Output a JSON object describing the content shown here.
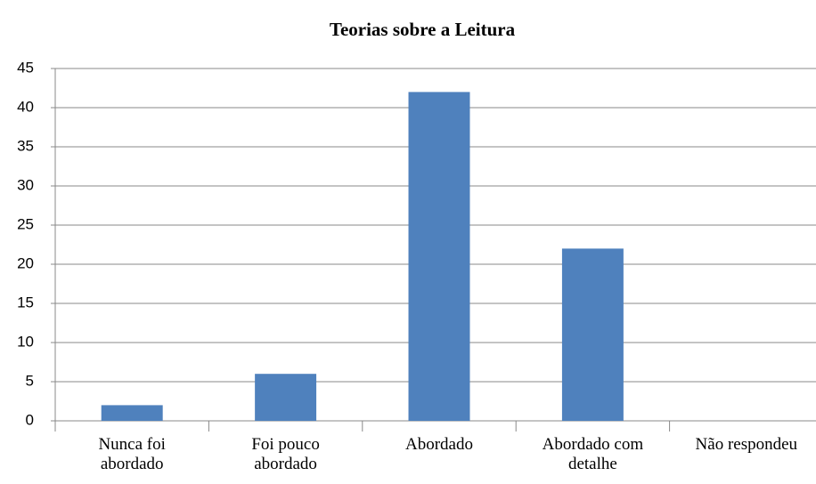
{
  "chart_data": {
    "type": "bar",
    "title": "Teorias sobre a Leitura",
    "categories": [
      "Nunca foi abordado",
      "Foi pouco abordado",
      "Abordado",
      "Abordado com detalhe",
      "Não respondeu"
    ],
    "values": [
      2,
      6,
      42,
      22,
      0
    ],
    "color": "#4f81bd",
    "ylim": [
      0,
      45
    ],
    "yticks": [
      0,
      5,
      10,
      15,
      20,
      25,
      30,
      35,
      40,
      45
    ],
    "grid": true
  }
}
